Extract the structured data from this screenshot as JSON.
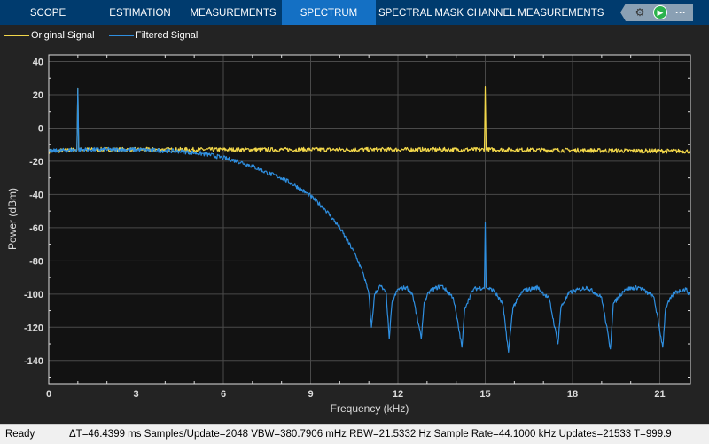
{
  "toolbar": {
    "tabs": [
      "SCOPE",
      "ESTIMATION",
      "MEASUREMENTS",
      "SPECTRUM",
      "SPECTRAL MASK",
      "CHANNEL MEASUREMENTS"
    ],
    "active_tab": "SPECTRUM",
    "tools": [
      "settings-icon",
      "run-icon",
      "more-icon"
    ]
  },
  "status": {
    "state": "Ready",
    "text": "ΔT=46.4399 ms  Samples/Update=2048  VBW=380.7906 mHz  RBW=21.5332 Hz  Sample Rate=44.1000 kHz  Updates=21533  T=999.9"
  },
  "colors": {
    "original": "#f2d74a",
    "filtered": "#2f8fe0",
    "axes_bg": "#121212",
    "grid": "#444444",
    "accent": "#1470c4"
  },
  "chart_data": {
    "type": "line",
    "xlabel": "Frequency (kHz)",
    "ylabel": "Power (dBm)",
    "xlim": [
      0,
      22.05
    ],
    "ylim": [
      -154,
      44
    ],
    "xticks": [
      "0",
      "3",
      "6",
      "9",
      "12",
      "15",
      "18",
      "21"
    ],
    "yticks": [
      "40",
      "20",
      "0",
      "-20",
      "-40",
      "-60",
      "-80",
      "-100",
      "-120",
      "-140"
    ],
    "grid": true,
    "legend": "top-left",
    "series": [
      {
        "name": "Original Signal",
        "color": "#f2d74a",
        "points": [
          [
            0,
            -14
          ],
          [
            0.97,
            -13
          ],
          [
            1,
            24
          ],
          [
            1.03,
            -13
          ],
          [
            14.97,
            -13
          ],
          [
            15,
            25
          ],
          [
            15.03,
            -13
          ],
          [
            22.05,
            -14
          ]
        ]
      },
      {
        "name": "Filtered Signal",
        "color": "#2f8fe0",
        "points": [
          [
            0,
            -14
          ],
          [
            0.97,
            -13
          ],
          [
            1,
            24
          ],
          [
            1.03,
            -13
          ],
          [
            3,
            -13
          ],
          [
            4.5,
            -14
          ],
          [
            5,
            -15
          ],
          [
            5.5,
            -16
          ],
          [
            6,
            -18
          ],
          [
            6.5,
            -20
          ],
          [
            7,
            -23
          ],
          [
            7.5,
            -27
          ],
          [
            8,
            -30
          ],
          [
            8.5,
            -35
          ],
          [
            9,
            -41
          ],
          [
            9.5,
            -49
          ],
          [
            10,
            -60
          ],
          [
            10.5,
            -75
          ],
          [
            10.8,
            -87
          ],
          [
            11,
            -100
          ],
          [
            11.09,
            -120
          ],
          [
            11.2,
            -100
          ],
          [
            11.4,
            -95
          ],
          [
            11.6,
            -100
          ],
          [
            11.7,
            -127
          ],
          [
            11.8,
            -105
          ],
          [
            12,
            -97
          ],
          [
            12.3,
            -96
          ],
          [
            12.5,
            -100
          ],
          [
            12.8,
            -127
          ],
          [
            12.9,
            -105
          ],
          [
            13.1,
            -98
          ],
          [
            13.5,
            -95
          ],
          [
            13.9,
            -102
          ],
          [
            14.2,
            -132
          ],
          [
            14.3,
            -108
          ],
          [
            14.6,
            -97
          ],
          [
            14.97,
            -96
          ],
          [
            15,
            -57
          ],
          [
            15.03,
            -96
          ],
          [
            15.3,
            -98
          ],
          [
            15.6,
            -106
          ],
          [
            15.8,
            -135
          ],
          [
            15.95,
            -108
          ],
          [
            16.3,
            -98
          ],
          [
            16.8,
            -96
          ],
          [
            17.2,
            -103
          ],
          [
            17.5,
            -130
          ],
          [
            17.6,
            -108
          ],
          [
            17.9,
            -99
          ],
          [
            18.5,
            -96
          ],
          [
            19,
            -102
          ],
          [
            19.3,
            -133
          ],
          [
            19.4,
            -106
          ],
          [
            19.8,
            -97
          ],
          [
            20.3,
            -96
          ],
          [
            20.8,
            -102
          ],
          [
            21.1,
            -132
          ],
          [
            21.2,
            -108
          ],
          [
            21.5,
            -99
          ],
          [
            21.9,
            -97
          ],
          [
            22.05,
            -101
          ]
        ]
      }
    ]
  }
}
